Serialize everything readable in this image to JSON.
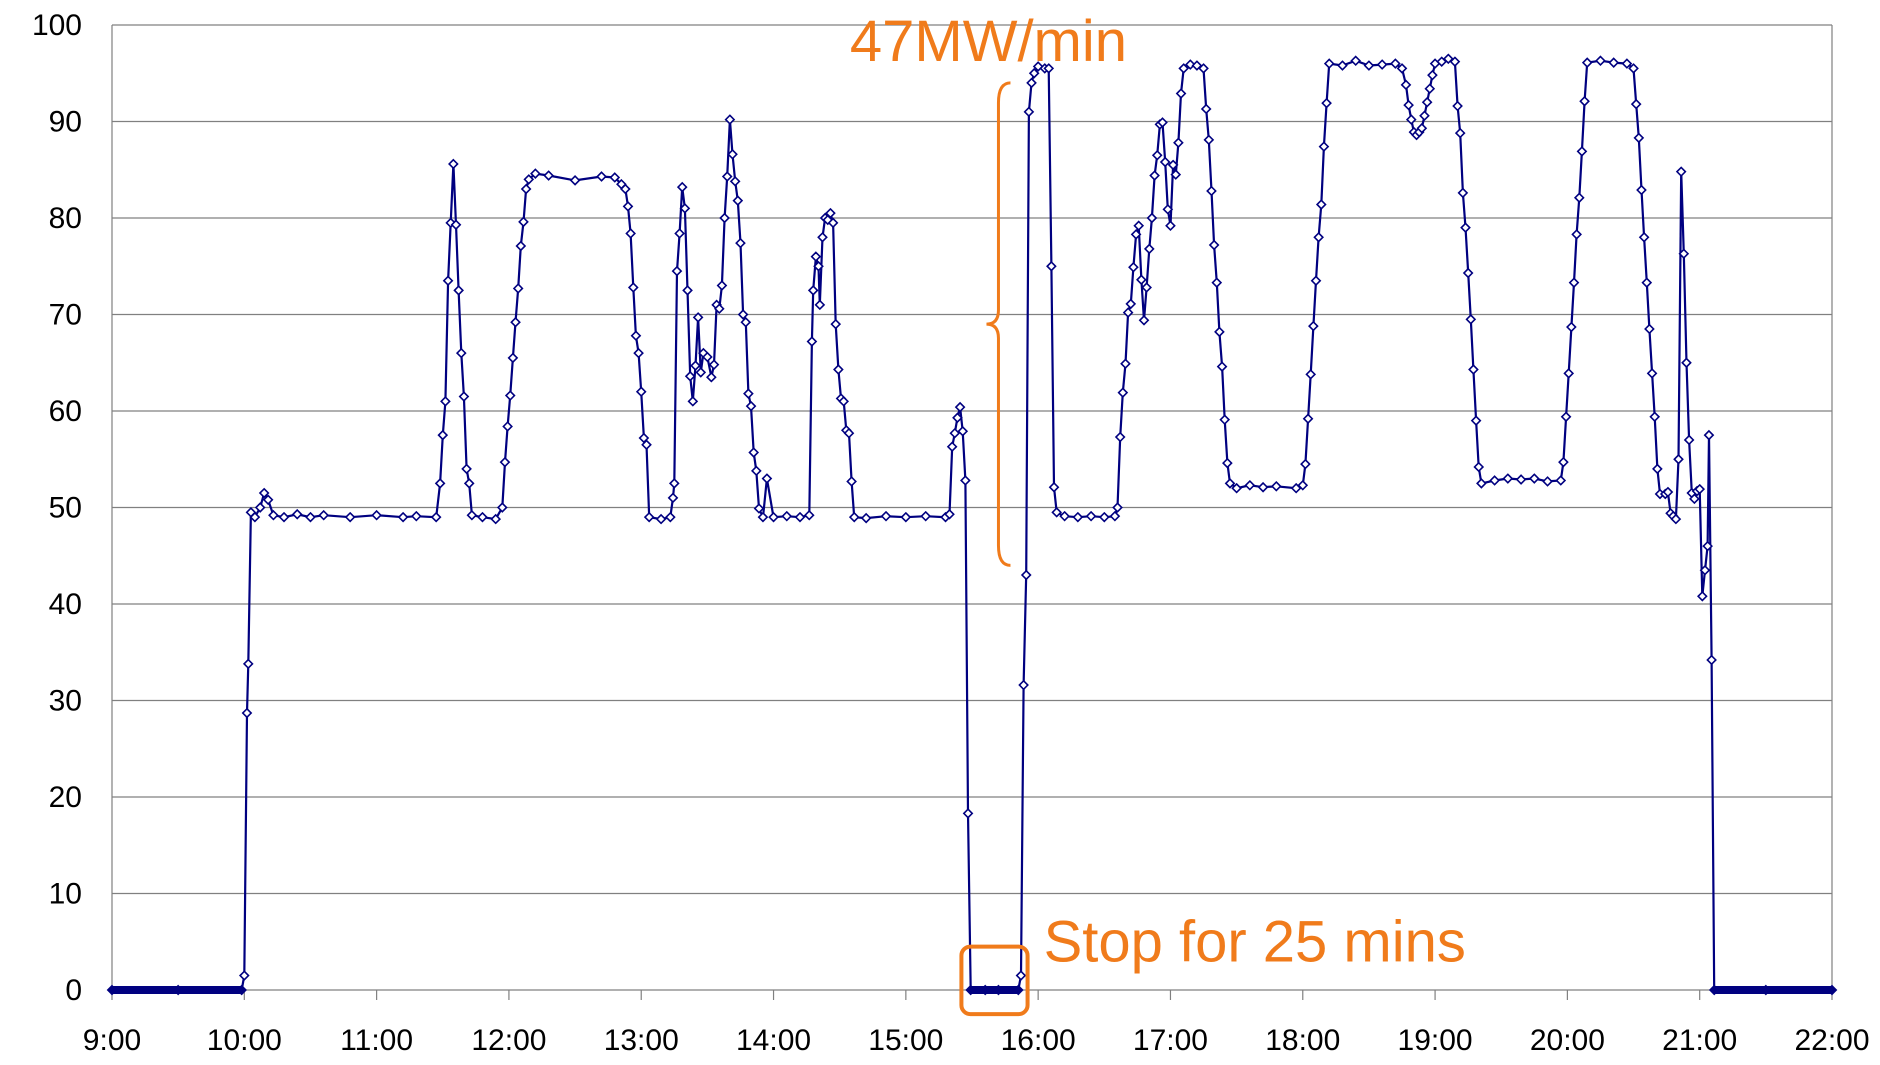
{
  "chart_data": {
    "type": "line",
    "title": "",
    "xlabel": "",
    "ylabel": "",
    "ylim": [
      0,
      100
    ],
    "y_ticks": [
      0,
      10,
      20,
      30,
      40,
      50,
      60,
      70,
      80,
      90,
      100
    ],
    "x_ticks": [
      "9:00",
      "10:00",
      "11:00",
      "12:00",
      "13:00",
      "14:00",
      "15:00",
      "16:00",
      "17:00",
      "18:00",
      "19:00",
      "20:00",
      "21:00",
      "22:00"
    ],
    "x_range_hours": [
      9,
      22
    ],
    "grid": "horizontal",
    "legend": "none",
    "marker": "diamond",
    "series_color": "#000080",
    "annotation_color": "#f07b1b",
    "series": [
      {
        "points": [
          [
            9.0,
            0
          ],
          [
            9.5,
            0
          ],
          [
            9.98,
            0
          ],
          [
            10.0,
            1.5
          ],
          [
            10.02,
            28.7
          ],
          [
            10.03,
            33.8
          ],
          [
            10.05,
            49.5
          ],
          [
            10.08,
            49.0
          ],
          [
            10.12,
            50.0
          ],
          [
            10.15,
            51.5
          ],
          [
            10.18,
            50.8
          ],
          [
            10.22,
            49.2
          ],
          [
            10.3,
            49.0
          ],
          [
            10.4,
            49.3
          ],
          [
            10.5,
            49.0
          ],
          [
            10.6,
            49.2
          ],
          [
            10.8,
            49.0
          ],
          [
            11.0,
            49.2
          ],
          [
            11.2,
            49.0
          ],
          [
            11.3,
            49.1
          ],
          [
            11.45,
            49.0
          ],
          [
            11.48,
            52.5
          ],
          [
            11.5,
            57.5
          ],
          [
            11.52,
            61.0
          ],
          [
            11.54,
            73.5
          ],
          [
            11.56,
            79.5
          ],
          [
            11.58,
            85.6
          ],
          [
            11.6,
            79.3
          ],
          [
            11.62,
            72.5
          ],
          [
            11.64,
            66.0
          ],
          [
            11.66,
            61.5
          ],
          [
            11.68,
            54.0
          ],
          [
            11.7,
            52.5
          ],
          [
            11.72,
            49.2
          ],
          [
            11.8,
            49.0
          ],
          [
            11.9,
            48.8
          ],
          [
            11.95,
            50.0
          ],
          [
            11.97,
            54.7
          ],
          [
            11.99,
            58.4
          ],
          [
            12.01,
            61.6
          ],
          [
            12.03,
            65.5
          ],
          [
            12.05,
            69.2
          ],
          [
            12.07,
            72.7
          ],
          [
            12.09,
            77.1
          ],
          [
            12.11,
            79.6
          ],
          [
            12.13,
            83.0
          ],
          [
            12.15,
            84.0
          ],
          [
            12.2,
            84.6
          ],
          [
            12.3,
            84.4
          ],
          [
            12.5,
            83.9
          ],
          [
            12.7,
            84.3
          ],
          [
            12.8,
            84.2
          ],
          [
            12.85,
            83.5
          ],
          [
            12.88,
            83.0
          ],
          [
            12.9,
            81.2
          ],
          [
            12.92,
            78.4
          ],
          [
            12.94,
            72.8
          ],
          [
            12.96,
            67.8
          ],
          [
            12.98,
            66.0
          ],
          [
            13.0,
            62.0
          ],
          [
            13.02,
            57.2
          ],
          [
            13.04,
            56.5
          ],
          [
            13.06,
            49.0
          ],
          [
            13.15,
            48.8
          ],
          [
            13.22,
            49.0
          ],
          [
            13.24,
            51.0
          ],
          [
            13.25,
            52.5
          ],
          [
            13.27,
            74.5
          ],
          [
            13.29,
            78.4
          ],
          [
            13.31,
            83.2
          ],
          [
            13.33,
            81.0
          ],
          [
            13.35,
            72.5
          ],
          [
            13.37,
            63.6
          ],
          [
            13.39,
            61.0
          ],
          [
            13.41,
            64.7
          ],
          [
            13.43,
            69.7
          ],
          [
            13.45,
            64.0
          ],
          [
            13.47,
            66.0
          ],
          [
            13.5,
            65.6
          ],
          [
            13.53,
            63.5
          ],
          [
            13.55,
            64.8
          ],
          [
            13.57,
            71.0
          ],
          [
            13.59,
            70.6
          ],
          [
            13.61,
            73.0
          ],
          [
            13.63,
            80.0
          ],
          [
            13.65,
            84.3
          ],
          [
            13.67,
            90.2
          ],
          [
            13.69,
            86.6
          ],
          [
            13.71,
            83.8
          ],
          [
            13.73,
            81.8
          ],
          [
            13.75,
            77.4
          ],
          [
            13.77,
            70.0
          ],
          [
            13.79,
            69.2
          ],
          [
            13.81,
            61.8
          ],
          [
            13.83,
            60.5
          ],
          [
            13.85,
            55.7
          ],
          [
            13.87,
            53.8
          ],
          [
            13.89,
            49.9
          ],
          [
            13.92,
            49.0
          ],
          [
            13.95,
            53.0
          ],
          [
            14.0,
            49.0
          ],
          [
            14.1,
            49.1
          ],
          [
            14.2,
            49.0
          ],
          [
            14.27,
            49.2
          ],
          [
            14.29,
            67.2
          ],
          [
            14.3,
            72.5
          ],
          [
            14.32,
            76.0
          ],
          [
            14.34,
            75.0
          ],
          [
            14.35,
            71.0
          ],
          [
            14.37,
            78.0
          ],
          [
            14.39,
            80.0
          ],
          [
            14.41,
            79.8
          ],
          [
            14.43,
            80.5
          ],
          [
            14.45,
            79.5
          ],
          [
            14.47,
            69.0
          ],
          [
            14.49,
            64.3
          ],
          [
            14.51,
            61.3
          ],
          [
            14.53,
            61.0
          ],
          [
            14.55,
            58.0
          ],
          [
            14.57,
            57.7
          ],
          [
            14.59,
            52.7
          ],
          [
            14.61,
            49.0
          ],
          [
            14.7,
            48.9
          ],
          [
            14.85,
            49.1
          ],
          [
            15.0,
            49.0
          ],
          [
            15.15,
            49.1
          ],
          [
            15.3,
            49.0
          ],
          [
            15.33,
            49.3
          ],
          [
            15.35,
            56.3
          ],
          [
            15.37,
            57.7
          ],
          [
            15.39,
            59.3
          ],
          [
            15.41,
            60.4
          ],
          [
            15.43,
            57.9
          ],
          [
            15.45,
            52.8
          ],
          [
            15.47,
            18.3
          ],
          [
            15.49,
            0
          ],
          [
            15.6,
            0
          ],
          [
            15.7,
            0
          ],
          [
            15.85,
            0
          ],
          [
            15.87,
            1.5
          ],
          [
            15.89,
            31.6
          ],
          [
            15.91,
            43.0
          ],
          [
            15.93,
            91.0
          ],
          [
            15.95,
            94.0
          ],
          [
            15.97,
            95.0
          ],
          [
            16.0,
            95.7
          ],
          [
            16.05,
            95.5
          ],
          [
            16.08,
            95.5
          ],
          [
            16.1,
            75.0
          ],
          [
            16.12,
            52.1
          ],
          [
            16.14,
            49.5
          ],
          [
            16.2,
            49.1
          ],
          [
            16.3,
            49.0
          ],
          [
            16.4,
            49.1
          ],
          [
            16.5,
            49.0
          ],
          [
            16.58,
            49.1
          ],
          [
            16.6,
            50.0
          ],
          [
            16.62,
            57.3
          ],
          [
            16.64,
            61.9
          ],
          [
            16.66,
            64.9
          ],
          [
            16.68,
            70.2
          ],
          [
            16.7,
            71.1
          ],
          [
            16.72,
            74.9
          ],
          [
            16.74,
            78.3
          ],
          [
            16.76,
            79.2
          ],
          [
            16.78,
            73.6
          ],
          [
            16.8,
            69.4
          ],
          [
            16.82,
            72.8
          ],
          [
            16.84,
            76.8
          ],
          [
            16.86,
            80.0
          ],
          [
            16.88,
            84.4
          ],
          [
            16.9,
            86.5
          ],
          [
            16.92,
            89.7
          ],
          [
            16.94,
            89.9
          ],
          [
            16.96,
            85.8
          ],
          [
            16.98,
            80.9
          ],
          [
            17.0,
            79.2
          ],
          [
            17.02,
            85.5
          ],
          [
            17.04,
            84.5
          ],
          [
            17.06,
            87.8
          ],
          [
            17.08,
            92.9
          ],
          [
            17.1,
            95.5
          ],
          [
            17.15,
            95.9
          ],
          [
            17.2,
            95.8
          ],
          [
            17.25,
            95.5
          ],
          [
            17.27,
            91.3
          ],
          [
            17.29,
            88.1
          ],
          [
            17.31,
            82.8
          ],
          [
            17.33,
            77.2
          ],
          [
            17.35,
            73.3
          ],
          [
            17.37,
            68.2
          ],
          [
            17.39,
            64.6
          ],
          [
            17.41,
            59.1
          ],
          [
            17.43,
            54.6
          ],
          [
            17.45,
            52.5
          ],
          [
            17.5,
            52.0
          ],
          [
            17.6,
            52.3
          ],
          [
            17.7,
            52.1
          ],
          [
            17.8,
            52.2
          ],
          [
            17.95,
            52.0
          ],
          [
            18.0,
            52.3
          ],
          [
            18.02,
            54.5
          ],
          [
            18.04,
            59.2
          ],
          [
            18.06,
            63.8
          ],
          [
            18.08,
            68.8
          ],
          [
            18.1,
            73.5
          ],
          [
            18.12,
            78.0
          ],
          [
            18.14,
            81.4
          ],
          [
            18.16,
            87.4
          ],
          [
            18.18,
            91.9
          ],
          [
            18.2,
            96.0
          ],
          [
            18.3,
            95.8
          ],
          [
            18.4,
            96.3
          ],
          [
            18.5,
            95.8
          ],
          [
            18.6,
            95.9
          ],
          [
            18.7,
            96.0
          ],
          [
            18.75,
            95.5
          ],
          [
            18.78,
            93.8
          ],
          [
            18.8,
            91.7
          ],
          [
            18.82,
            90.2
          ],
          [
            18.84,
            88.9
          ],
          [
            18.86,
            88.6
          ],
          [
            18.88,
            88.9
          ],
          [
            18.9,
            89.3
          ],
          [
            18.92,
            90.6
          ],
          [
            18.94,
            92.0
          ],
          [
            18.96,
            93.4
          ],
          [
            18.98,
            94.8
          ],
          [
            19.0,
            96.0
          ],
          [
            19.05,
            96.2
          ],
          [
            19.1,
            96.5
          ],
          [
            19.15,
            96.2
          ],
          [
            19.17,
            91.6
          ],
          [
            19.19,
            88.8
          ],
          [
            19.21,
            82.6
          ],
          [
            19.23,
            79.0
          ],
          [
            19.25,
            74.3
          ],
          [
            19.27,
            69.5
          ],
          [
            19.29,
            64.3
          ],
          [
            19.31,
            59.0
          ],
          [
            19.33,
            54.2
          ],
          [
            19.35,
            52.5
          ],
          [
            19.45,
            52.8
          ],
          [
            19.55,
            53.0
          ],
          [
            19.65,
            52.9
          ],
          [
            19.75,
            53.0
          ],
          [
            19.85,
            52.7
          ],
          [
            19.95,
            52.8
          ],
          [
            19.97,
            54.7
          ],
          [
            19.99,
            59.4
          ],
          [
            20.01,
            63.9
          ],
          [
            20.03,
            68.7
          ],
          [
            20.05,
            73.3
          ],
          [
            20.07,
            78.3
          ],
          [
            20.09,
            82.1
          ],
          [
            20.11,
            86.9
          ],
          [
            20.13,
            92.1
          ],
          [
            20.15,
            96.1
          ],
          [
            20.25,
            96.3
          ],
          [
            20.35,
            96.1
          ],
          [
            20.45,
            96.0
          ],
          [
            20.5,
            95.5
          ],
          [
            20.52,
            91.8
          ],
          [
            20.54,
            88.3
          ],
          [
            20.56,
            82.9
          ],
          [
            20.58,
            78.0
          ],
          [
            20.6,
            73.3
          ],
          [
            20.62,
            68.5
          ],
          [
            20.64,
            63.9
          ],
          [
            20.66,
            59.4
          ],
          [
            20.68,
            54.0
          ],
          [
            20.7,
            51.4
          ],
          [
            20.74,
            51.4
          ],
          [
            20.76,
            51.6
          ],
          [
            20.78,
            49.4
          ],
          [
            20.8,
            49.1
          ],
          [
            20.82,
            48.8
          ],
          [
            20.84,
            55.0
          ],
          [
            20.86,
            84.8
          ],
          [
            20.88,
            76.3
          ],
          [
            20.9,
            65.0
          ],
          [
            20.92,
            57.0
          ],
          [
            20.94,
            51.5
          ],
          [
            20.96,
            50.9
          ],
          [
            20.98,
            51.7
          ],
          [
            21.0,
            51.9
          ],
          [
            21.02,
            40.8
          ],
          [
            21.04,
            43.5
          ],
          [
            21.06,
            46.0
          ],
          [
            21.07,
            57.5
          ],
          [
            21.09,
            34.2
          ],
          [
            21.11,
            0
          ],
          [
            21.5,
            0
          ],
          [
            22.0,
            0
          ]
        ]
      }
    ],
    "annotations": [
      {
        "text": "47MW/min",
        "type": "brace-vertical",
        "x": 15.7,
        "y_from": 44,
        "y_to": 94
      },
      {
        "text": "Stop for 25 mins",
        "type": "box",
        "x_from": 15.42,
        "x_to": 15.92,
        "y_from": -2.5,
        "y_to": 4.5
      }
    ]
  }
}
